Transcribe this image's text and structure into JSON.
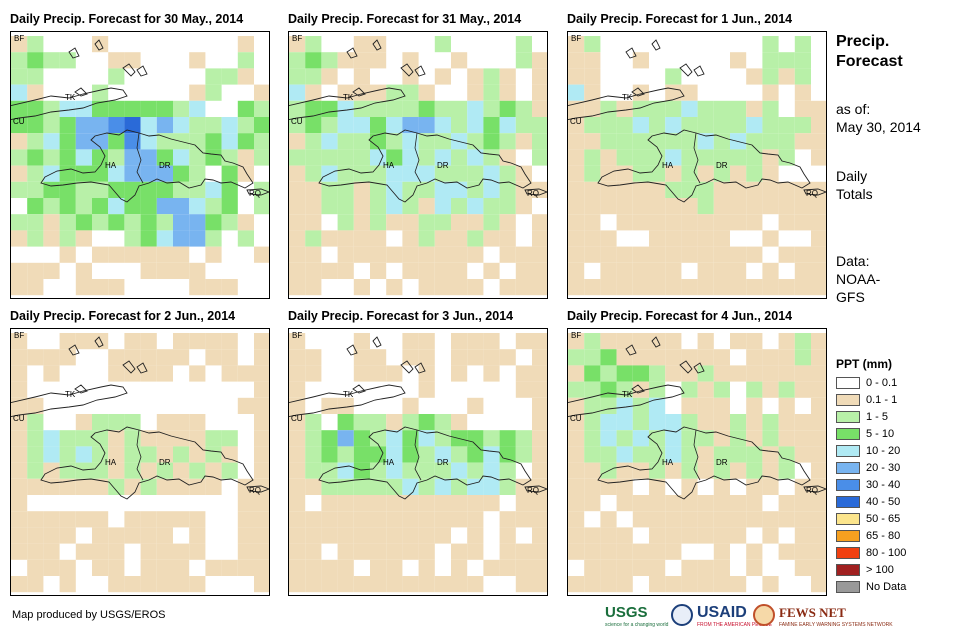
{
  "panels": [
    {
      "title": "Daily Precip. Forecast for 30 May., 2014"
    },
    {
      "title": "Daily Precip. Forecast for 31 May., 2014"
    },
    {
      "title": "Daily Precip. Forecast for 1 Jun., 2014"
    },
    {
      "title": "Daily Precip. Forecast for 2 Jun., 2014"
    },
    {
      "title": "Daily Precip. Forecast for 3 Jun., 2014"
    },
    {
      "title": "Daily Precip. Forecast for 4 Jun., 2014"
    }
  ],
  "map_labels": {
    "bf": "BF",
    "cu": "CU",
    "ha": "HA",
    "dr": "DR",
    "rq": "RQ",
    "tk": "TK"
  },
  "side": {
    "title_line1": "Precip.",
    "title_line2": "Forecast",
    "as_of_label": "as of:",
    "as_of_date": "May 30, 2014",
    "daily_line1": "Daily",
    "daily_line2": "Totals",
    "data_line1": "Data:",
    "data_line2": "NOAA-",
    "data_line3": "GFS"
  },
  "legend": {
    "title": "PPT (mm)",
    "items": [
      {
        "label": "0 - 0.1",
        "color": "#ffffff"
      },
      {
        "label": "0.1 - 1",
        "color": "#f0dbb8"
      },
      {
        "label": "1 - 5",
        "color": "#b8f0a8"
      },
      {
        "label": "5 - 10",
        "color": "#78e068"
      },
      {
        "label": "10 - 20",
        "color": "#b0eaf4"
      },
      {
        "label": "20 - 30",
        "color": "#78b4f0"
      },
      {
        "label": "30 - 40",
        "color": "#4a8ee8"
      },
      {
        "label": "40 - 50",
        "color": "#2a6ad8"
      },
      {
        "label": "50 - 65",
        "color": "#fce58c"
      },
      {
        "label": "65 - 80",
        "color": "#f6a020"
      },
      {
        "label": "80 - 100",
        "color": "#f04010"
      },
      {
        "label": "> 100",
        "color": "#a02020"
      },
      {
        "label": "No Data",
        "color": "#999999"
      }
    ]
  },
  "credit": "Map produced by USGS/EROS",
  "logos": {
    "usgs": "USGS",
    "usgs_tagline": "science for a changing world",
    "usaid": "USAID",
    "usaid_tagline": "FROM THE AMERICAN PEOPLE",
    "fews": "FEWS NET",
    "fews_tagline": "FAMINE EARLY WARNING SYSTEMS NETWORK"
  }
}
